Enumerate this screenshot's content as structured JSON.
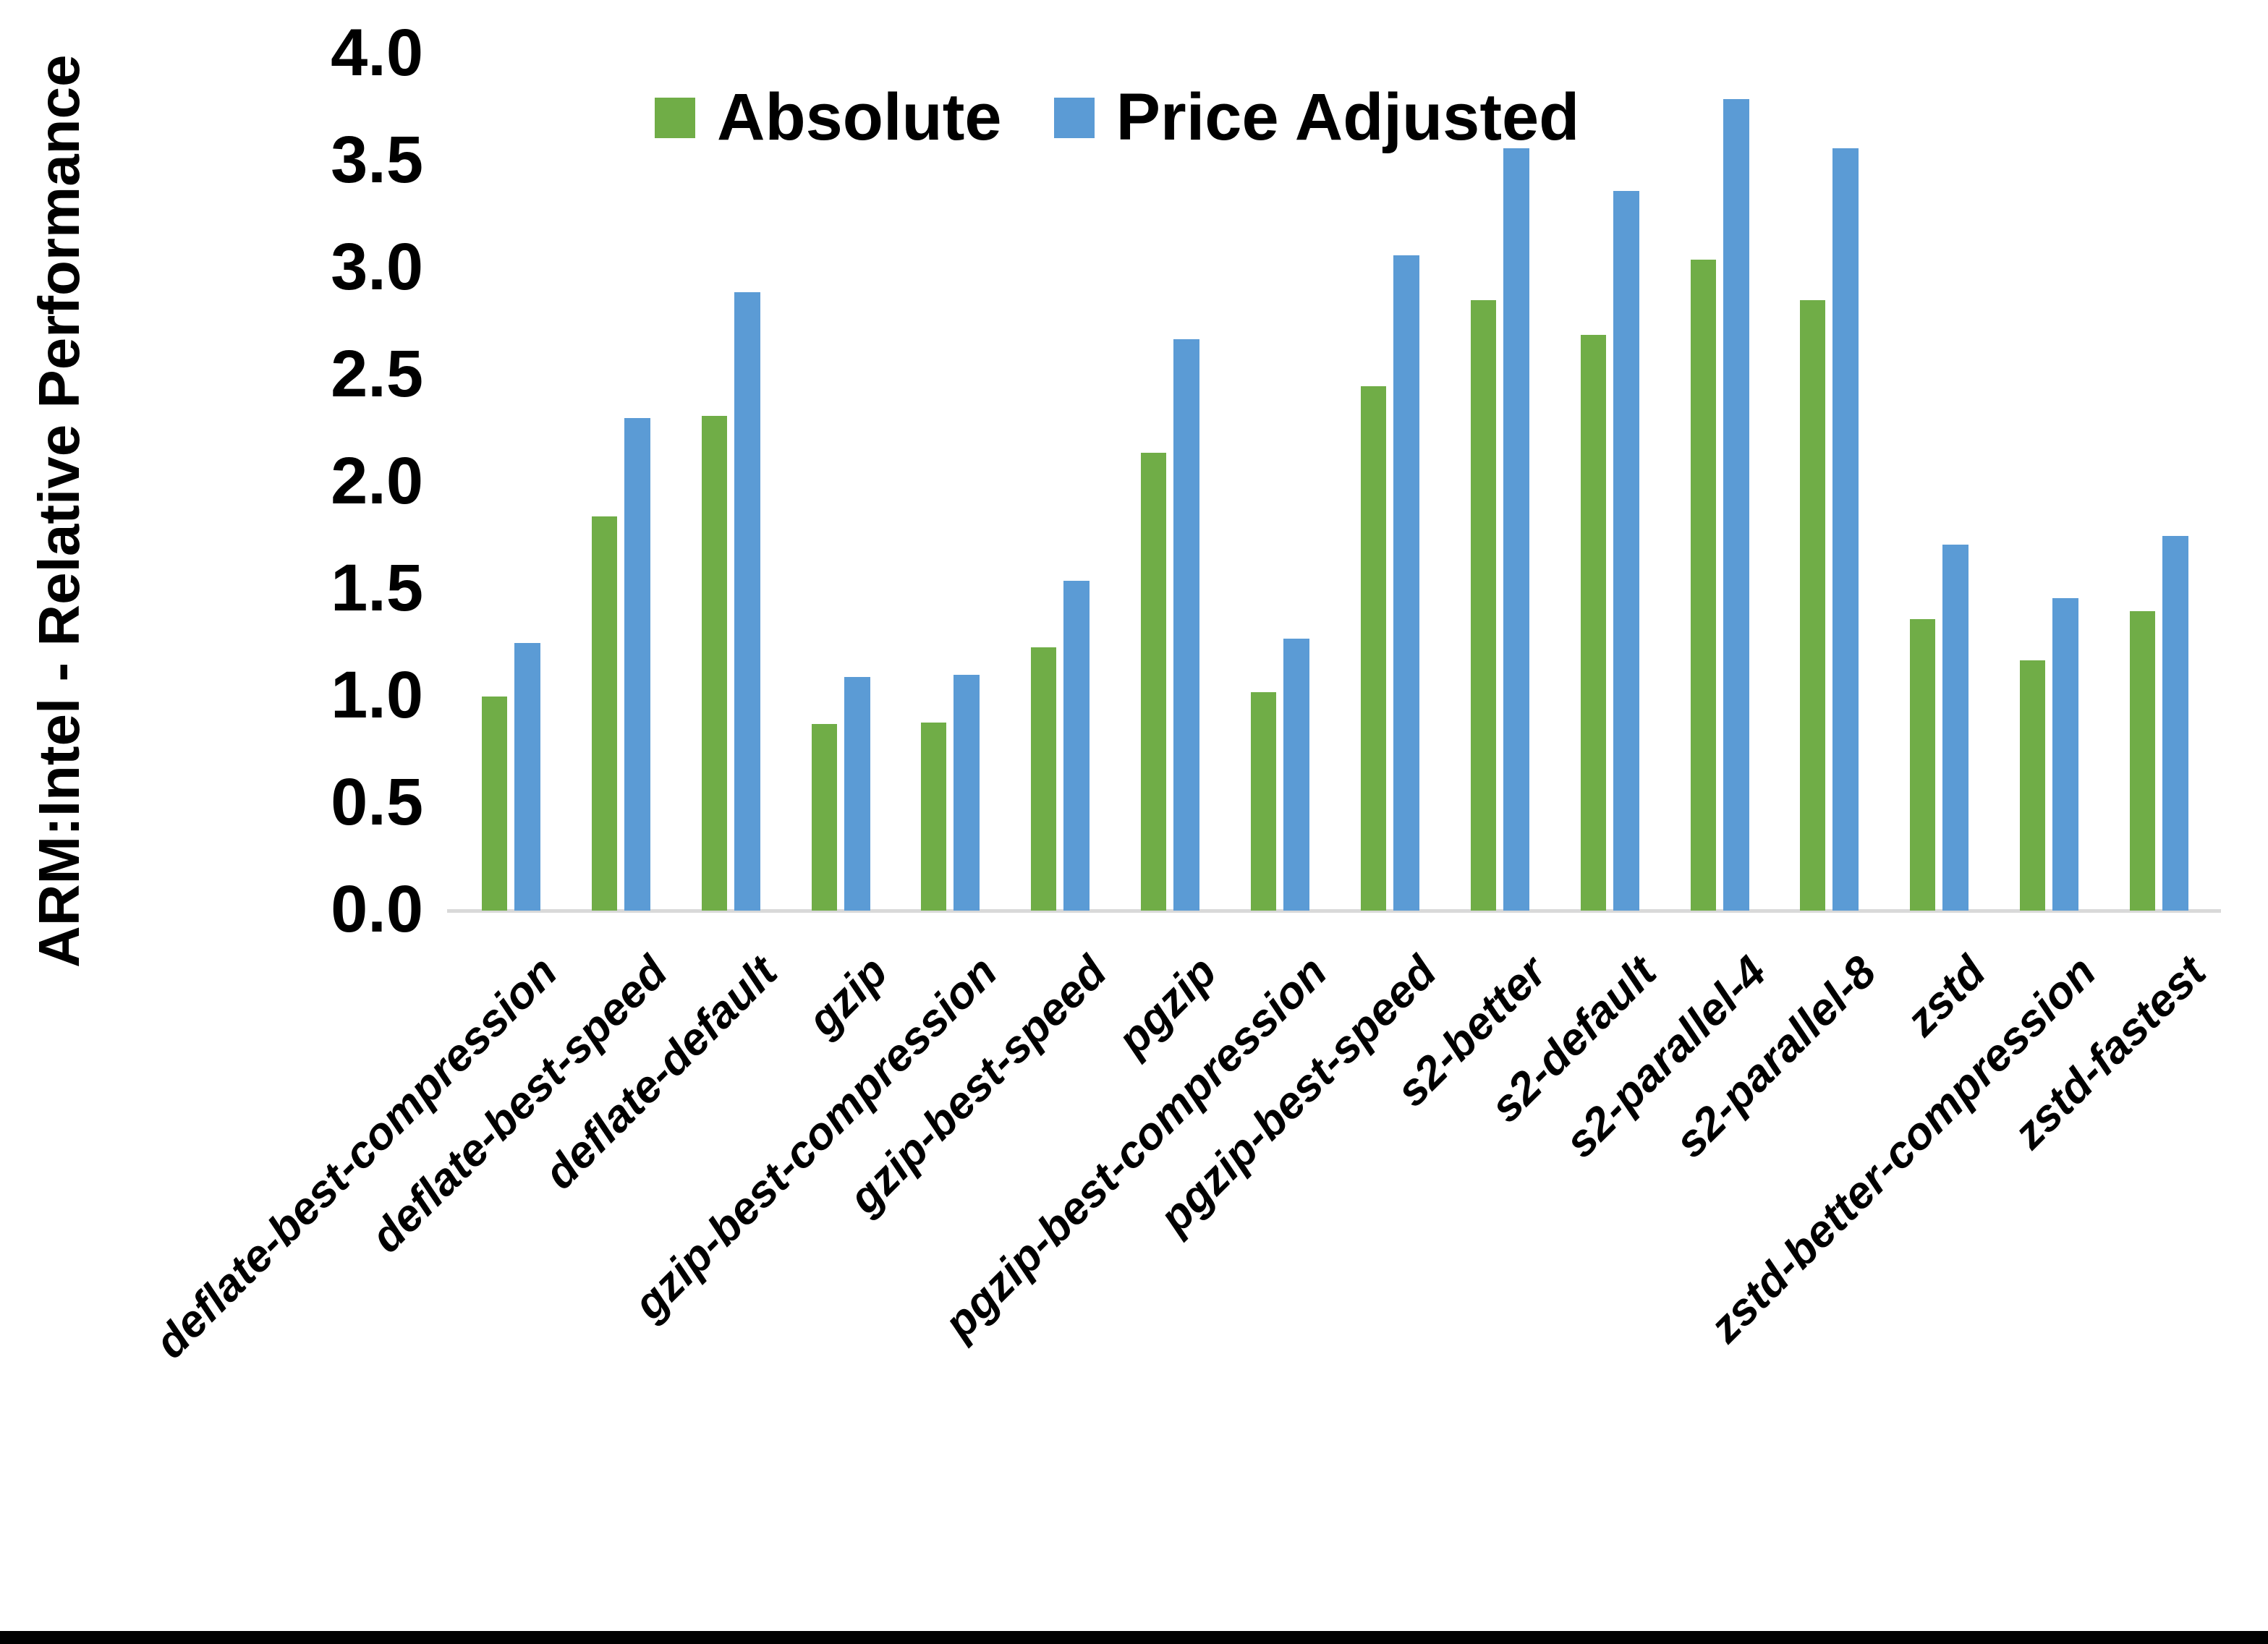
{
  "page": {
    "background": "#ffffff",
    "bottom_border_color": "#000000"
  },
  "chart_data": {
    "type": "bar",
    "title": "",
    "xlabel": "",
    "ylabel": "ARM:Intel - Relative Performance",
    "ylim": [
      0.0,
      4.0
    ],
    "ytick_step": 0.5,
    "yticks": [
      "0.0",
      "0.5",
      "1.0",
      "1.5",
      "2.0",
      "2.5",
      "3.0",
      "3.5",
      "4.0"
    ],
    "grid": false,
    "legend_position": "top-center",
    "axis_line_color": "#d9d9d9",
    "categories": [
      "deflate-best-compression",
      "deflate-best-speed",
      "deflate-default",
      "gzip",
      "gzip-best-compression",
      "gzip-best-speed",
      "pgzip",
      "pgzip-best-compression",
      "pgzip-best-speed",
      "s2-better",
      "s2-default",
      "s2-parallel-4",
      "s2-parallel-8",
      "zstd",
      "zstd-better-compression",
      "zstd-fastest"
    ],
    "series": [
      {
        "name": "Absolute",
        "color": "#70AD47",
        "values": [
          1.0,
          1.84,
          2.31,
          0.87,
          0.88,
          1.23,
          2.14,
          1.02,
          2.45,
          2.85,
          2.69,
          3.04,
          2.85,
          1.36,
          1.17,
          1.4
        ]
      },
      {
        "name": "Price Adjusted",
        "color": "#5B9BD5",
        "values": [
          1.25,
          2.3,
          2.89,
          1.09,
          1.1,
          1.54,
          2.67,
          1.27,
          3.06,
          3.56,
          3.36,
          3.79,
          3.56,
          1.71,
          1.46,
          1.75
        ]
      }
    ]
  }
}
